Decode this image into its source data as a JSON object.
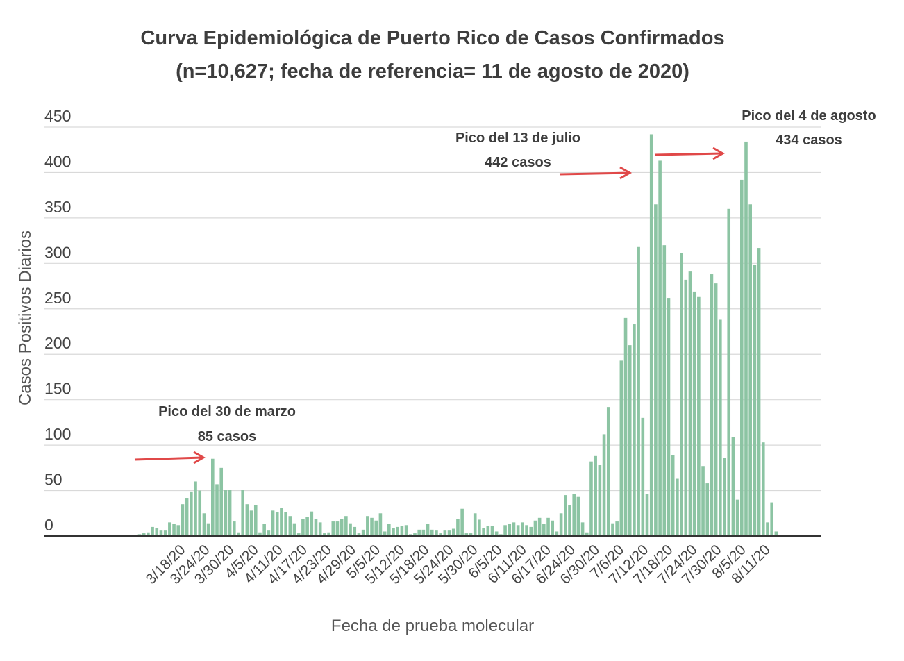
{
  "chart_data": {
    "type": "bar",
    "title": "Curva Epidemiológica de Puerto Rico de Casos Confirmados",
    "subtitle": "(n=10,627; fecha de referencia= 11 de agosto de 2020)",
    "xlabel": "Fecha de prueba molecular",
    "ylabel": "Casos Positivos Diarios",
    "ylim": [
      0,
      450
    ],
    "yticks": [
      0,
      50,
      100,
      150,
      200,
      250,
      300,
      350,
      400,
      450
    ],
    "grid": true,
    "legend": "none",
    "bar_color": "#8cc4a3",
    "arrow_color": "#e04848",
    "xtick_labels": [
      "3/18/20",
      "3/24/20",
      "3/30/20",
      "4/5/20",
      "4/11/20",
      "4/17/20",
      "4/23/20",
      "4/29/20",
      "5/5/20",
      "5/12/20",
      "5/18/20",
      "5/24/20",
      "5/30/20",
      "6/5/20",
      "6/11/20",
      "6/17/20",
      "6/24/20",
      "6/30/20",
      "7/6/20",
      "7/12/20",
      "7/18/20",
      "7/24/20",
      "7/30/20",
      "8/5/20",
      "8/11/20"
    ],
    "values": [
      2,
      3,
      4,
      10,
      9,
      6,
      6,
      15,
      13,
      12,
      35,
      42,
      49,
      60,
      50,
      25,
      14,
      85,
      57,
      75,
      51,
      51,
      16,
      4,
      51,
      35,
      28,
      34,
      4,
      13,
      6,
      28,
      26,
      31,
      26,
      22,
      14,
      3,
      19,
      21,
      27,
      19,
      15,
      3,
      4,
      16,
      16,
      19,
      22,
      14,
      10,
      3,
      7,
      22,
      20,
      17,
      25,
      5,
      13,
      9,
      10,
      11,
      12,
      2,
      3,
      7,
      7,
      13,
      7,
      6,
      3,
      6,
      6,
      8,
      19,
      30,
      3,
      3,
      25,
      18,
      9,
      11,
      11,
      5,
      2,
      12,
      13,
      15,
      12,
      15,
      12,
      10,
      17,
      20,
      13,
      20,
      17,
      5,
      25,
      45,
      34,
      46,
      43,
      15,
      4,
      82,
      88,
      78,
      112,
      142,
      14,
      16,
      193,
      240,
      210,
      233,
      318,
      130,
      46,
      442,
      365,
      413,
      320,
      262,
      89,
      63,
      311,
      282,
      291,
      269,
      263,
      77,
      58,
      288,
      278,
      238,
      86,
      360,
      109,
      40,
      392,
      434,
      365,
      298,
      317,
      103,
      15,
      37,
      5
    ],
    "annotations": [
      {
        "line1": "Pico del 30 de marzo",
        "line2": "85 casos"
      },
      {
        "line1": "Pico del 13 de julio",
        "line2": "442 casos"
      },
      {
        "line1": "Pico del 4 de agosto",
        "line2": "434 casos"
      }
    ]
  }
}
